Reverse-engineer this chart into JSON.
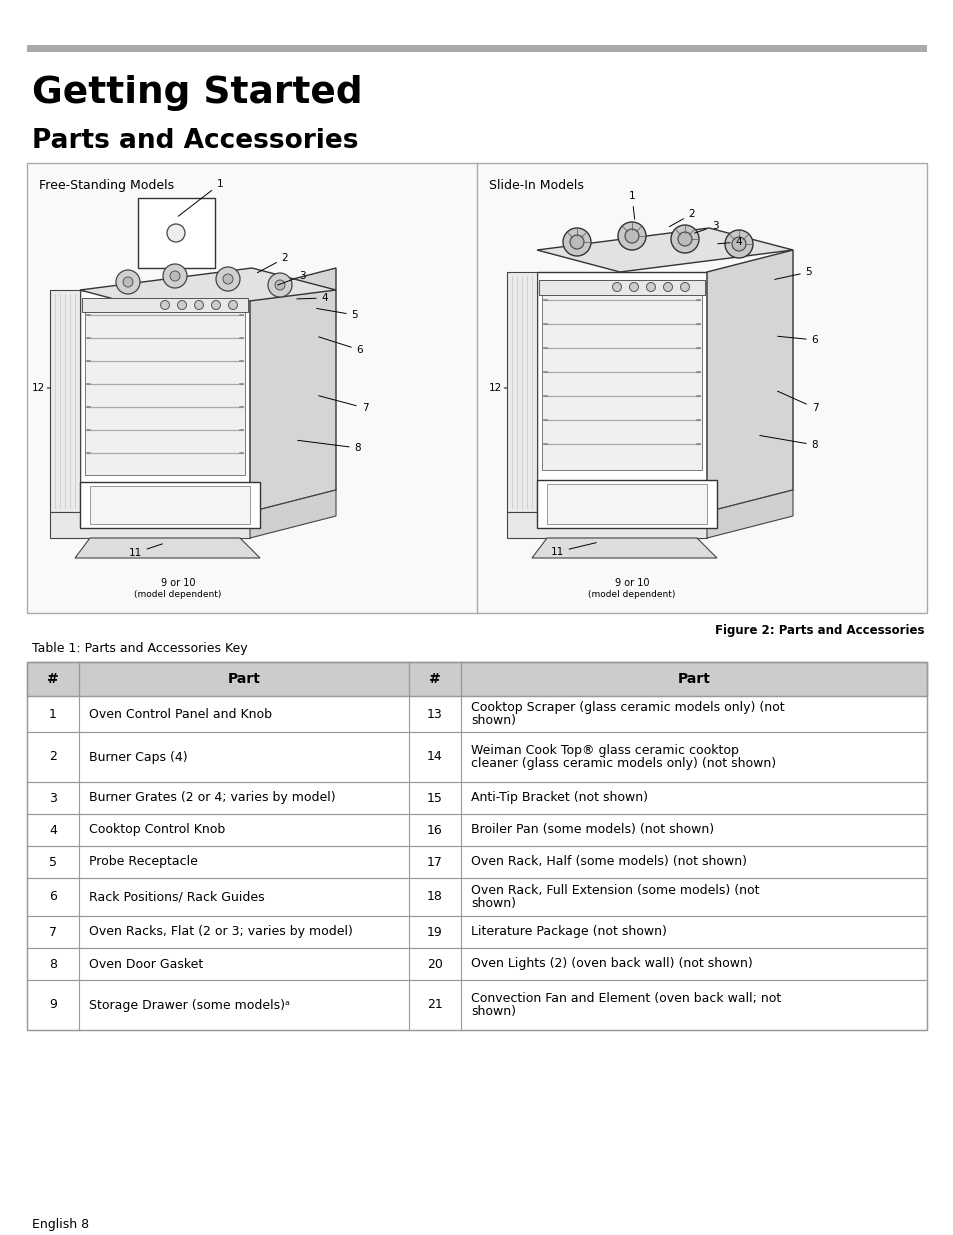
{
  "page_title": "Getting Started",
  "section_title": "Parts and Accessories",
  "figure_caption": "Figure 2: Parts and Accessories",
  "table_caption": "Table 1: Parts and Accessories Key",
  "footer": "English 8",
  "left_panel_label": "Free-Standing Models",
  "right_panel_label": "Slide-In Models",
  "table_headers": [
    "#",
    "Part",
    "#",
    "Part"
  ],
  "table_rows": [
    [
      "1",
      "Oven Control Panel and Knob",
      "13",
      "Cooktop Scraper (glass ceramic models only) (not\nshown)"
    ],
    [
      "2",
      "Burner Caps (4)",
      "14",
      "Weiman Cook Top® glass ceramic cooktop\ncleaner (glass ceramic models only) (not shown)"
    ],
    [
      "3",
      "Burner Grates (2 or 4; varies by model)",
      "15",
      "Anti-Tip Bracket (not shown)"
    ],
    [
      "4",
      "Cooktop Control Knob",
      "16",
      "Broiler Pan (some models) (not shown)"
    ],
    [
      "5",
      "Probe Receptacle",
      "17",
      "Oven Rack, Half (some models) (not shown)"
    ],
    [
      "6",
      "Rack Positions/ Rack Guides",
      "18",
      "Oven Rack, Full Extension (some models) (not\nshown)"
    ],
    [
      "7",
      "Oven Racks, Flat (2 or 3; varies by model)",
      "19",
      "Literature Package (not shown)"
    ],
    [
      "8",
      "Oven Door Gasket",
      "20",
      "Oven Lights (2) (oven back wall) (not shown)"
    ],
    [
      "9",
      "Storage Drawer (some models)ᵃ",
      "21",
      "Convection Fan and Element (oven back wall; not\nshown)"
    ]
  ],
  "header_bg": "#cccccc",
  "border_color": "#999999",
  "top_bar_color": "#aaaaaa",
  "bg_color": "#ffffff",
  "panel_bg": "#f9f9f9",
  "panel_border_color": "#aaaaaa"
}
